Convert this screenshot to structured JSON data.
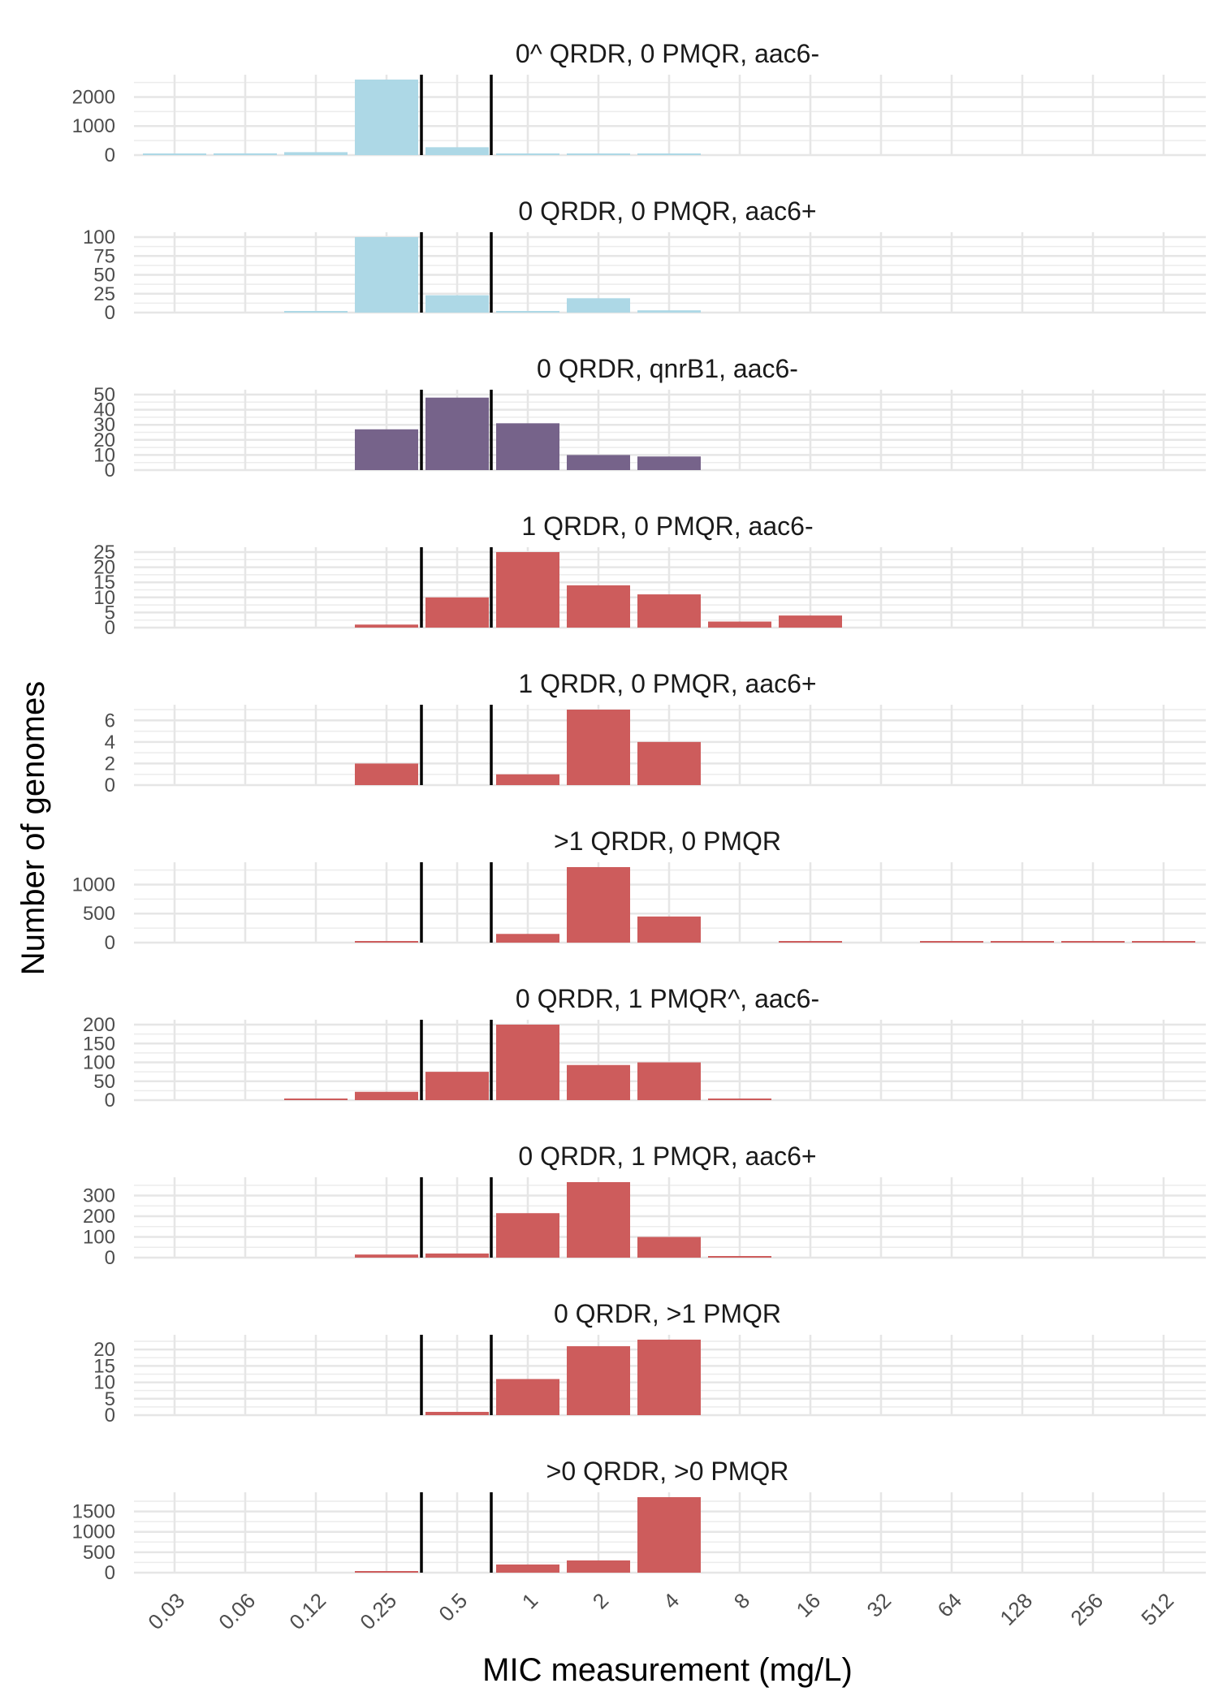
{
  "chart_data": {
    "type": "bar",
    "xlabel": "MIC measurement (mg/L)",
    "ylabel": "Number of genomes",
    "categories": [
      "0.03",
      "0.06",
      "0.12",
      "0.25",
      "0.5",
      "1",
      "2",
      "4",
      "8",
      "16",
      "32",
      "64",
      "128",
      "256",
      "512"
    ],
    "breakpoints": [
      "0.25–0.5",
      "0.5–1"
    ],
    "grid": true,
    "colors": {
      "group1": "#add8e6",
      "group2": "#76638a",
      "group3": "#cd5c5c"
    },
    "panels": [
      {
        "title": "0^ QRDR, 0 PMQR, aac6-",
        "color": "#add8e6",
        "yticks": [
          0,
          1000,
          2000
        ],
        "ymax": 2600,
        "values": [
          40,
          60,
          100,
          2600,
          270,
          30,
          15,
          10,
          0,
          0,
          0,
          0,
          0,
          0,
          0
        ]
      },
      {
        "title": "0 QRDR, 0 PMQR, aac6+",
        "color": "#add8e6",
        "yticks": [
          0,
          25,
          50,
          75,
          100
        ],
        "ymax": 100,
        "values": [
          0,
          0,
          2,
          100,
          23,
          2,
          19,
          3,
          0,
          0,
          0,
          0,
          0,
          0,
          0
        ]
      },
      {
        "title": "0 QRDR, qnrB1, aac6-",
        "color": "#76638a",
        "yticks": [
          0,
          10,
          20,
          30,
          40,
          50
        ],
        "ymax": 50,
        "values": [
          0,
          0,
          0,
          27,
          48,
          31,
          10,
          9,
          0,
          0,
          0,
          0,
          0,
          0,
          0
        ]
      },
      {
        "title": "1 QRDR, 0 PMQR, aac6-",
        "color": "#cd5c5c",
        "yticks": [
          0,
          5,
          10,
          15,
          20,
          25
        ],
        "ymax": 25,
        "values": [
          0,
          0,
          0,
          1,
          10,
          25,
          14,
          11,
          2,
          4,
          0,
          0,
          0,
          0,
          0
        ]
      },
      {
        "title": "1 QRDR, 0 PMQR, aac6+",
        "color": "#cd5c5c",
        "yticks": [
          0,
          2,
          4,
          6
        ],
        "ymax": 7,
        "values": [
          0,
          0,
          0,
          2,
          0,
          1,
          7,
          4,
          0,
          0,
          0,
          0,
          0,
          0,
          0
        ]
      },
      {
        "title": ">1 QRDR, 0 PMQR",
        "color": "#cd5c5c",
        "yticks": [
          0,
          500,
          1000
        ],
        "ymax": 1300,
        "values": [
          0,
          0,
          0,
          10,
          0,
          150,
          1300,
          450,
          0,
          10,
          0,
          10,
          20,
          15,
          10
        ]
      },
      {
        "title": "0 QRDR, 1 PMQR^, aac6-",
        "color": "#cd5c5c",
        "yticks": [
          0,
          50,
          100,
          150,
          200
        ],
        "ymax": 200,
        "values": [
          0,
          0,
          2,
          22,
          75,
          200,
          93,
          100,
          3,
          0,
          0,
          0,
          0,
          0,
          0
        ]
      },
      {
        "title": "0 QRDR, 1 PMQR, aac6+",
        "color": "#cd5c5c",
        "yticks": [
          0,
          100,
          200,
          300
        ],
        "ymax": 365,
        "values": [
          0,
          0,
          0,
          15,
          20,
          215,
          365,
          100,
          5,
          0,
          0,
          0,
          0,
          0,
          0
        ]
      },
      {
        "title": "0 QRDR, >1 PMQR",
        "color": "#cd5c5c",
        "yticks": [
          0,
          5,
          10,
          15,
          20
        ],
        "ymax": 23,
        "values": [
          0,
          0,
          0,
          0,
          1,
          11,
          21,
          23,
          0,
          0,
          0,
          0,
          0,
          0,
          0
        ]
      },
      {
        "title": ">0 QRDR, >0 PMQR",
        "color": "#cd5c5c",
        "yticks": [
          0,
          500,
          1000,
          1500
        ],
        "ymax": 1850,
        "values": [
          0,
          0,
          0,
          10,
          0,
          200,
          300,
          1850,
          0,
          0,
          0,
          0,
          0,
          0,
          0
        ]
      }
    ]
  }
}
